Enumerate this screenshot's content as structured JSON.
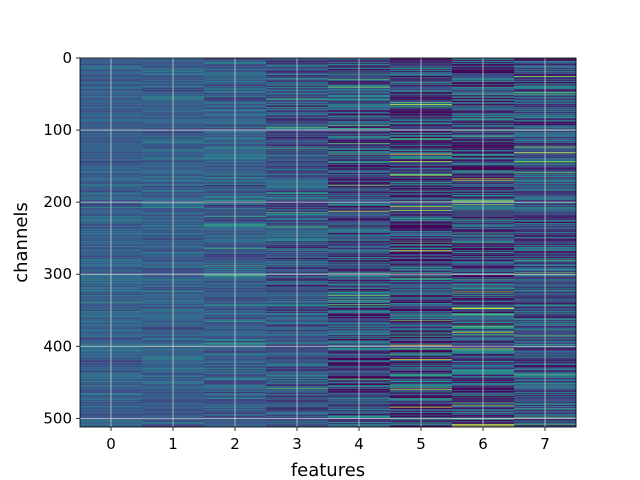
{
  "chart_data": {
    "type": "heatmap",
    "title": "",
    "xlabel": "features",
    "ylabel": "channels",
    "x_categories": [
      "0",
      "1",
      "2",
      "3",
      "4",
      "5",
      "6",
      "7"
    ],
    "y_range": [
      0,
      512
    ],
    "y_inverted": true,
    "y_ticks": [
      "0",
      "100",
      "200",
      "300",
      "400",
      "500"
    ],
    "grid": true,
    "colormap": "viridis",
    "colors": {
      "low": "#440154",
      "mid": "#21908d",
      "high": "#fde725",
      "base": "#3b528b"
    },
    "column_spread": [
      0.1,
      0.12,
      0.15,
      0.2,
      0.28,
      0.36,
      0.34,
      0.26
    ],
    "column_base": [
      0.3,
      0.3,
      0.3,
      0.26,
      0.24,
      0.2,
      0.24,
      0.26
    ],
    "highlights": [
      {
        "feature": 4,
        "channel": 40,
        "value": 0.8
      },
      {
        "feature": 4,
        "channel": 176,
        "value": 0.8
      },
      {
        "feature": 4,
        "channel": 212,
        "value": 0.9
      },
      {
        "feature": 5,
        "channel": 64,
        "value": 0.95
      },
      {
        "feature": 5,
        "channel": 143,
        "value": 0.9
      },
      {
        "feature": 5,
        "channel": 206,
        "value": 0.95
      },
      {
        "feature": 5,
        "channel": 364,
        "value": 0.8
      },
      {
        "feature": 5,
        "channel": 398,
        "value": 0.95
      },
      {
        "feature": 5,
        "channel": 484,
        "value": 0.95
      },
      {
        "feature": 6,
        "channel": 324,
        "value": 0.85
      },
      {
        "feature": 6,
        "channel": 380,
        "value": 0.95
      },
      {
        "feature": 6,
        "channel": 356,
        "value": 0.75
      },
      {
        "feature": 6,
        "channel": 478,
        "value": 0.7
      },
      {
        "feature": 7,
        "channel": 131,
        "value": 0.95
      },
      {
        "feature": 7,
        "channel": 300,
        "value": 0.7
      },
      {
        "feature": 3,
        "channel": 458,
        "value": 0.7
      },
      {
        "feature": 2,
        "channel": 288,
        "value": 0.6
      },
      {
        "feature": 0,
        "channel": 339,
        "value": 0.6
      },
      {
        "feature": 1,
        "channel": 400,
        "value": 0.6
      }
    ]
  }
}
